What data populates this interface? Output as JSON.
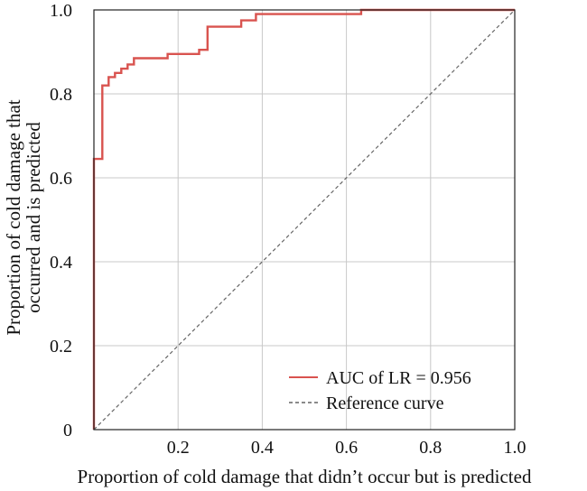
{
  "chart_data": {
    "type": "line",
    "xlabel": "Proportion of cold damage that didn’t occur but is predicted",
    "ylabel_lines": [
      "Proportion of cold damage that",
      "occurred and is predicted"
    ],
    "xlim": [
      0,
      1.0
    ],
    "ylim": [
      0,
      1.0
    ],
    "x_ticks": [
      {
        "value": 0.2,
        "label": "0.2"
      },
      {
        "value": 0.4,
        "label": "0.4"
      },
      {
        "value": 0.6,
        "label": "0.6"
      },
      {
        "value": 0.8,
        "label": "0.8"
      },
      {
        "value": 1.0,
        "label": "1.0"
      }
    ],
    "y_ticks": [
      {
        "value": 0,
        "label": "0"
      },
      {
        "value": 0.2,
        "label": "0.2"
      },
      {
        "value": 0.4,
        "label": "0.4"
      },
      {
        "value": 0.6,
        "label": "0.6"
      },
      {
        "value": 0.8,
        "label": "0.8"
      },
      {
        "value": 1.0,
        "label": "1.0"
      }
    ],
    "grid": true,
    "legend_position": "bottom-right",
    "series": [
      {
        "name": "AUC of LR = 0.956",
        "color": "#d9534f",
        "style": "solid",
        "x": [
          0,
          0,
          0.02,
          0.02,
          0.035,
          0.035,
          0.05,
          0.05,
          0.065,
          0.065,
          0.08,
          0.08,
          0.095,
          0.095,
          0.175,
          0.175,
          0.25,
          0.25,
          0.27,
          0.27,
          0.35,
          0.35,
          0.385,
          0.385,
          0.635,
          0.635,
          1.0
        ],
        "y": [
          0,
          0.645,
          0.645,
          0.82,
          0.82,
          0.84,
          0.84,
          0.85,
          0.85,
          0.86,
          0.86,
          0.87,
          0.87,
          0.885,
          0.885,
          0.895,
          0.895,
          0.905,
          0.905,
          0.96,
          0.96,
          0.975,
          0.975,
          0.99,
          0.99,
          1.0,
          1.0
        ]
      },
      {
        "name": "Reference curve",
        "color": "#666666",
        "style": "dashed",
        "x": [
          0,
          1.0
        ],
        "y": [
          0,
          1.0
        ]
      }
    ]
  }
}
